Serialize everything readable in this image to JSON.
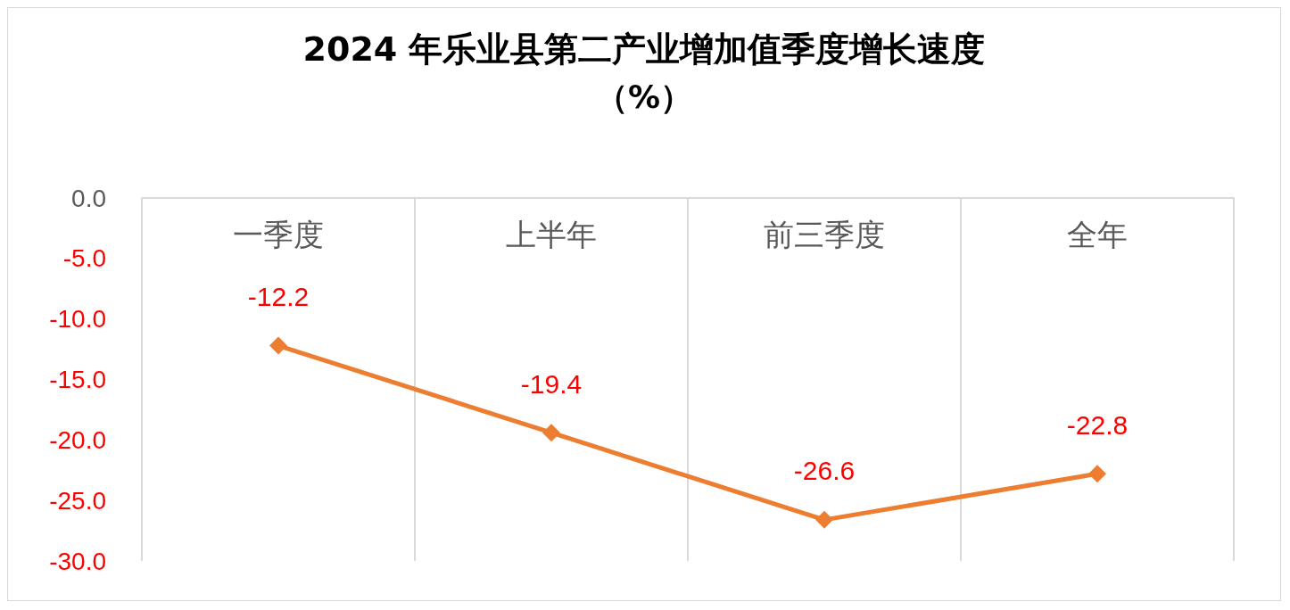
{
  "chart_data": {
    "type": "line",
    "title": "2024 年乐业县第二产业增加值季度增长速度",
    "subtitle": "（%）",
    "categories": [
      "一季度",
      "上半年",
      "前三季度",
      "全年"
    ],
    "series": [
      {
        "color": "#ed7d31",
        "values": [
          -12.2,
          -19.4,
          -26.6,
          -22.8
        ]
      }
    ],
    "ylim": [
      -30,
      0
    ],
    "yticks": [
      {
        "value": 0,
        "label": "0.0"
      },
      {
        "value": -5,
        "label": "-5.0"
      },
      {
        "value": -10,
        "label": "-10.0"
      },
      {
        "value": -15,
        "label": "-15.0"
      },
      {
        "value": -20,
        "label": "-20.0"
      },
      {
        "value": -25,
        "label": "-25.0"
      },
      {
        "value": -30,
        "label": "-30.0"
      }
    ],
    "grid": "x",
    "marker": "diamond",
    "line_style": "solid",
    "data_labels": true
  }
}
